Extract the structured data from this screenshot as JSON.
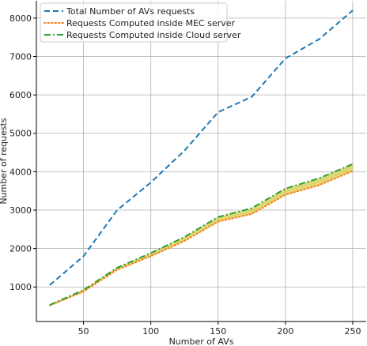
{
  "chart_data": {
    "type": "line",
    "xlabel": "Number of AVs",
    "ylabel": "Number of requests",
    "xlim": [
      15,
      260
    ],
    "ylim": [
      100,
      8450
    ],
    "xticks": [
      50,
      100,
      150,
      200,
      250
    ],
    "yticks": [
      1000,
      2000,
      3000,
      4000,
      5000,
      6000,
      7000,
      8000
    ],
    "grid": true,
    "legend_position": "top-left",
    "x": [
      25,
      50,
      75,
      100,
      125,
      150,
      175,
      200,
      225,
      250
    ],
    "series": [
      {
        "name": "Total Number of AVs requests",
        "color": "#1f77b4",
        "style": "dashed",
        "values": [
          1050,
          1800,
          3000,
          3720,
          4550,
          5550,
          5950,
          6950,
          7450,
          8200
        ]
      },
      {
        "name": "Requests Computed inside MEC server",
        "color": "#ff7f0e",
        "style": "dotted",
        "values": [
          520,
          880,
          1450,
          1800,
          2200,
          2700,
          2900,
          3400,
          3650,
          4020
        ]
      },
      {
        "name": "Requests Computed inside Cloud server",
        "color": "#2ca02c",
        "style": "dashdot",
        "values": [
          530,
          920,
          1500,
          1880,
          2300,
          2820,
          3050,
          3560,
          3830,
          4200
        ]
      }
    ],
    "band": {
      "between": [
        1,
        2
      ],
      "color": "#d4c84a"
    }
  }
}
